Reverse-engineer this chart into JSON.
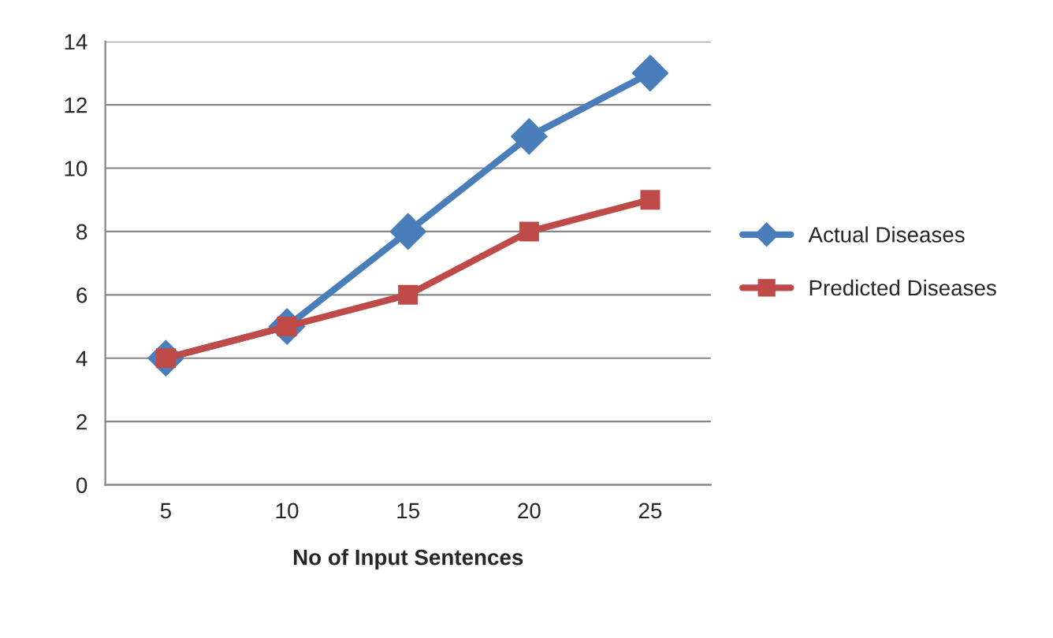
{
  "chart_data": {
    "type": "line",
    "xlabel": "No of Input Sentences",
    "categories": [
      "5",
      "10",
      "15",
      "20",
      "25"
    ],
    "series": [
      {
        "name": "Actual Diseases",
        "color": "#4a7ebb",
        "marker": "diamond",
        "values": [
          4,
          5,
          8,
          11,
          13
        ]
      },
      {
        "name": "Predicted Diseases",
        "color": "#be4b48",
        "marker": "square",
        "values": [
          4,
          5,
          6,
          8,
          9
        ]
      }
    ],
    "ylim": [
      0,
      14
    ],
    "yticks": [
      0,
      2,
      4,
      6,
      8,
      10,
      12,
      14
    ],
    "grid": "y",
    "legend": "right",
    "line_style": "solid"
  }
}
